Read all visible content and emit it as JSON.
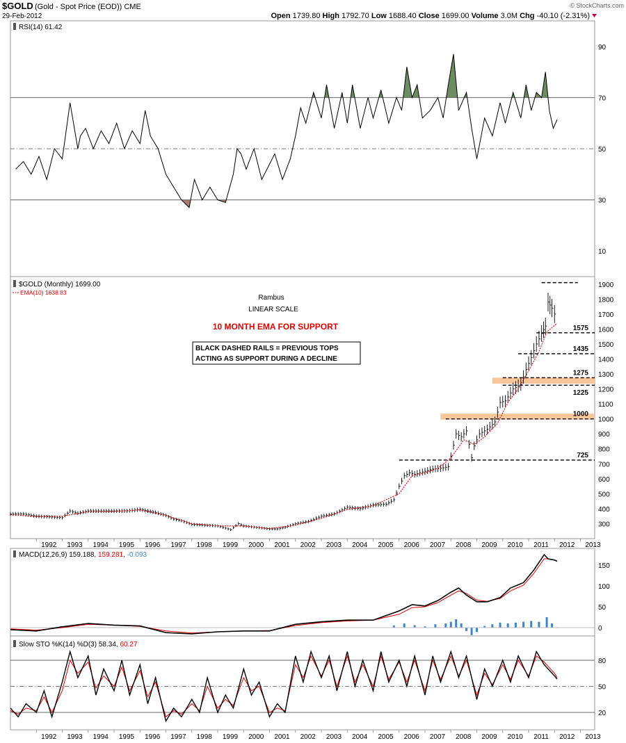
{
  "header": {
    "symbol": "$GOLD",
    "description": "(Gold - Spot Price (EOD)) CME",
    "date": "29-Feb-2012",
    "source": "© StockCharts.com",
    "quote": {
      "open_label": "Open",
      "open": "1739.80",
      "high_label": "High",
      "high": "1792.70",
      "low_label": "Low",
      "low": "1688.40",
      "close_label": "Close",
      "close": "1699.00",
      "volume_label": "Volume",
      "volume": "3.0M",
      "chg_label": "Chg",
      "chg": "-40.10 (-2.31%)"
    }
  },
  "colors": {
    "price_bar": "#000000",
    "ema": "#e00000",
    "support_zone": "#f7c79a",
    "overbought_fill": "#6e8c62",
    "oversold_fill": "#b07a7a",
    "macd_line": "#000000",
    "macd_signal": "#e00000",
    "histogram": "#3d87c8",
    "macd_value_color": "#3d87c8",
    "annotation_red": "#e00000"
  },
  "x_axis_labels": [
    "1992",
    "1993",
    "1994",
    "1995",
    "1996",
    "1997",
    "1998",
    "1999",
    "2000",
    "2001",
    "2002",
    "2003",
    "2004",
    "2005",
    "2006",
    "2007",
    "2008",
    "2009",
    "2010",
    "2011",
    "2012",
    "2013"
  ],
  "chart_data": [
    {
      "panel": "rsi",
      "type": "line",
      "legend": "RSI(14) 61.42",
      "ylim": [
        0,
        100
      ],
      "y_ticks": [
        10,
        30,
        50,
        70,
        90
      ],
      "overbought": 70,
      "oversold": 30,
      "midline": 50,
      "x": [
        1991.2,
        1991.5,
        1991.8,
        1992.1,
        1992.4,
        1992.7,
        1993.0,
        1993.3,
        1993.6,
        1993.7,
        1993.9,
        1994.2,
        1994.5,
        1994.8,
        1995.1,
        1995.4,
        1995.7,
        1996.0,
        1996.2,
        1996.4,
        1996.7,
        1997.0,
        1997.3,
        1997.6,
        1997.9,
        1998.1,
        1998.4,
        1998.7,
        1999.0,
        1999.3,
        1999.6,
        1999.75,
        1999.9,
        2000.1,
        2000.4,
        2000.7,
        2001.0,
        2001.2,
        2001.5,
        2001.8,
        2002.0,
        2002.2,
        2002.4,
        2002.7,
        2003.0,
        2003.2,
        2003.5,
        2003.8,
        2004.0,
        2004.2,
        2004.5,
        2004.8,
        2005.0,
        2005.3,
        2005.6,
        2005.9,
        2006.1,
        2006.3,
        2006.5,
        2006.7,
        2006.9,
        2007.2,
        2007.5,
        2007.7,
        2007.9,
        2008.1,
        2008.3,
        2008.6,
        2008.8,
        2009.0,
        2009.3,
        2009.6,
        2009.9,
        2010.1,
        2010.4,
        2010.7,
        2010.9,
        2011.1,
        2011.3,
        2011.5,
        2011.65,
        2011.8,
        2011.95,
        2012.1
      ],
      "values": [
        42,
        45,
        40,
        47,
        38,
        50,
        46,
        68,
        50,
        55,
        58,
        50,
        57,
        52,
        60,
        50,
        57,
        52,
        65,
        55,
        50,
        40,
        35,
        30,
        27,
        38,
        30,
        35,
        30,
        29,
        40,
        50,
        48,
        42,
        50,
        38,
        44,
        48,
        38,
        46,
        55,
        66,
        60,
        72,
        62,
        75,
        58,
        72,
        60,
        75,
        58,
        70,
        62,
        73,
        60,
        70,
        65,
        82,
        70,
        75,
        62,
        65,
        70,
        62,
        75,
        87,
        65,
        72,
        58,
        46,
        62,
        55,
        68,
        60,
        72,
        62,
        75,
        65,
        72,
        70,
        80,
        65,
        58,
        61.42
      ]
    },
    {
      "panel": "price",
      "type": "ohlc",
      "legend": "$GOLD (Monthly) 1699.00",
      "ema_legend": "EMA(10) 1638.83",
      "ylim": [
        200,
        1950
      ],
      "y_ticks": [
        300,
        400,
        500,
        600,
        700,
        800,
        900,
        1000,
        1100,
        1200,
        1300,
        1400,
        1500,
        1600,
        1700,
        1800,
        1900
      ],
      "x": [
        1991.0,
        1991.5,
        1992.0,
        1992.5,
        1993.0,
        1993.3,
        1993.6,
        1994.0,
        1994.5,
        1995.0,
        1995.5,
        1996.0,
        1996.3,
        1996.6,
        1997.0,
        1997.3,
        1997.6,
        1998.0,
        1998.5,
        1999.0,
        1999.5,
        1999.8,
        2000.0,
        2000.5,
        2001.0,
        2001.3,
        2001.6,
        2002.0,
        2002.5,
        2003.0,
        2003.5,
        2004.0,
        2004.5,
        2005.0,
        2005.5,
        2005.8,
        2006.0,
        2006.2,
        2006.4,
        2006.6,
        2007.0,
        2007.3,
        2007.6,
        2007.9,
        2008.0,
        2008.2,
        2008.4,
        2008.6,
        2008.8,
        2008.9,
        2009.1,
        2009.4,
        2009.7,
        2009.9,
        2010.1,
        2010.4,
        2010.7,
        2010.9,
        2011.1,
        2011.3,
        2011.5,
        2011.65,
        2011.75,
        2011.9,
        2012.0,
        2012.1
      ],
      "values": [
        365,
        365,
        350,
        345,
        340,
        385,
        370,
        385,
        385,
        385,
        385,
        395,
        385,
        375,
        355,
        330,
        320,
        295,
        290,
        285,
        260,
        300,
        285,
        275,
        265,
        265,
        275,
        300,
        315,
        350,
        365,
        410,
        400,
        425,
        430,
        460,
        550,
        620,
        640,
        630,
        650,
        665,
        670,
        680,
        750,
        900,
        880,
        920,
        740,
        820,
        900,
        930,
        980,
        1110,
        1120,
        1200,
        1230,
        1330,
        1410,
        1500,
        1570,
        1620,
        1780,
        1740,
        1700,
        1699
      ],
      "ema_x": [
        1991.0,
        1992.0,
        1993.0,
        1994.0,
        1995.0,
        1996.0,
        1997.0,
        1998.0,
        1999.0,
        2000.0,
        2001.0,
        2002.0,
        2003.0,
        2004.0,
        2005.0,
        2006.0,
        2006.5,
        2007.0,
        2007.5,
        2008.0,
        2008.5,
        2008.9,
        2009.3,
        2009.8,
        2010.2,
        2010.6,
        2011.0,
        2011.4,
        2011.7,
        2012.1
      ],
      "ema_values": [
        360,
        348,
        350,
        380,
        382,
        392,
        355,
        300,
        285,
        285,
        268,
        290,
        335,
        395,
        420,
        500,
        620,
        640,
        670,
        740,
        860,
        830,
        880,
        970,
        1110,
        1200,
        1320,
        1450,
        1580,
        1638.83
      ],
      "support_rails": [
        {
          "label": "1575",
          "value": 1575,
          "x_start": 2011.3
        },
        {
          "label": "1435",
          "value": 1435,
          "x_start": 2010.6
        },
        {
          "label": "1275",
          "value": 1275,
          "x_start": 2010.0
        },
        {
          "label": "1225",
          "value": 1225,
          "x_start": 2010.0
        },
        {
          "label": "1000",
          "value": 1000,
          "x_start": 2007.8
        },
        {
          "label": "725",
          "value": 725,
          "x_start": 2006.0
        }
      ],
      "top_rail": {
        "value": 1910,
        "x_start": 2011.5
      },
      "support_zones": [
        {
          "low": 1235,
          "high": 1275,
          "x_start": 2009.6
        },
        {
          "low": 995,
          "high": 1035,
          "x_start": 2007.6
        }
      ],
      "annotations": {
        "author": "Rambus",
        "scale": "LINEAR SCALE",
        "ema_note": "10 MONTH EMA FOR SUPPORT",
        "box_line1": "BLACK DASHED RAILS = PREVIOUS TOPS",
        "box_line2": "ACTING AS SUPPORT DURING A DECLINE"
      }
    },
    {
      "panel": "macd",
      "type": "line",
      "legend_name": "MACD(12,26,9)",
      "legend_macd": "159.188",
      "legend_signal": "159.281",
      "legend_hist": "-0.093",
      "ylim": [
        -20,
        190
      ],
      "y_ticks": [
        0,
        50,
        100,
        150
      ],
      "x": [
        1991.0,
        1992.0,
        1993.0,
        1994.0,
        1995.0,
        1996.0,
        1997.0,
        1998.0,
        1999.0,
        2000.0,
        2001.0,
        2002.0,
        2003.0,
        2004.0,
        2005.0,
        2006.0,
        2006.5,
        2007.0,
        2007.5,
        2008.0,
        2008.3,
        2008.6,
        2009.0,
        2009.4,
        2009.9,
        2010.3,
        2010.8,
        2011.2,
        2011.6,
        2011.75,
        2012.0,
        2012.1
      ],
      "macd": [
        -5,
        -8,
        2,
        10,
        6,
        4,
        -12,
        -15,
        -10,
        -8,
        -8,
        8,
        14,
        18,
        18,
        40,
        55,
        52,
        65,
        85,
        95,
        78,
        62,
        62,
        72,
        95,
        108,
        138,
        175,
        165,
        162,
        159.188
      ],
      "signal": [
        -3,
        -6,
        0,
        8,
        6,
        3,
        -8,
        -13,
        -10,
        -8,
        -7,
        5,
        12,
        16,
        18,
        32,
        48,
        50,
        60,
        78,
        88,
        82,
        66,
        63,
        70,
        88,
        102,
        130,
        165,
        165,
        162,
        159.281
      ],
      "hist_x": [
        2005.8,
        2006.2,
        2006.6,
        2007.0,
        2007.4,
        2007.8,
        2008.0,
        2008.2,
        2008.4,
        2008.6,
        2008.8,
        2009.0,
        2009.3,
        2009.6,
        2009.9,
        2010.2,
        2010.5,
        2010.8,
        2011.1,
        2011.4,
        2011.7,
        2011.9,
        2012.1
      ],
      "hist": [
        5,
        10,
        6,
        3,
        8,
        10,
        14,
        20,
        10,
        -8,
        -18,
        -10,
        4,
        8,
        12,
        10,
        12,
        14,
        16,
        14,
        25,
        10,
        -0.093
      ]
    },
    {
      "panel": "stochastic",
      "type": "line",
      "legend_name": "Slow STO %K(14) %D(3)",
      "legend_k": "58.34",
      "legend_d": "60.27",
      "ylim": [
        0,
        100
      ],
      "y_ticks": [
        20,
        50,
        80
      ],
      "x": [
        1991.0,
        1991.3,
        1991.6,
        1992.0,
        1992.3,
        1992.6,
        1993.0,
        1993.3,
        1993.6,
        1994.0,
        1994.3,
        1994.6,
        1995.0,
        1995.3,
        1995.6,
        1996.0,
        1996.3,
        1996.6,
        1997.0,
        1997.3,
        1997.6,
        1998.0,
        1998.3,
        1998.6,
        1999.0,
        1999.3,
        1999.6,
        2000.0,
        2000.3,
        2000.6,
        2001.0,
        2001.3,
        2001.6,
        2002.0,
        2002.3,
        2002.6,
        2003.0,
        2003.3,
        2003.6,
        2004.0,
        2004.3,
        2004.6,
        2005.0,
        2005.3,
        2005.6,
        2006.0,
        2006.3,
        2006.6,
        2007.0,
        2007.3,
        2007.6,
        2008.0,
        2008.3,
        2008.6,
        2009.0,
        2009.3,
        2009.6,
        2010.0,
        2010.3,
        2010.6,
        2011.0,
        2011.3,
        2011.6,
        2012.0,
        2012.1
      ],
      "k": [
        25,
        15,
        30,
        20,
        45,
        15,
        55,
        90,
        60,
        85,
        40,
        70,
        45,
        80,
        40,
        75,
        30,
        60,
        10,
        25,
        15,
        35,
        20,
        60,
        20,
        40,
        25,
        70,
        40,
        55,
        15,
        30,
        20,
        85,
        55,
        90,
        60,
        85,
        45,
        90,
        50,
        80,
        45,
        90,
        55,
        80,
        50,
        85,
        40,
        85,
        55,
        90,
        60,
        85,
        35,
        70,
        50,
        80,
        55,
        85,
        60,
        90,
        75,
        62,
        58.34
      ],
      "d": [
        22,
        18,
        25,
        22,
        38,
        20,
        45,
        80,
        65,
        78,
        48,
        62,
        50,
        72,
        45,
        68,
        38,
        55,
        15,
        22,
        18,
        30,
        22,
        50,
        25,
        35,
        28,
        60,
        45,
        50,
        20,
        25,
        22,
        75,
        60,
        85,
        62,
        80,
        50,
        85,
        55,
        75,
        50,
        85,
        58,
        78,
        55,
        80,
        45,
        80,
        58,
        85,
        62,
        80,
        40,
        65,
        52,
        75,
        58,
        80,
        62,
        85,
        78,
        65,
        60.27
      ]
    }
  ]
}
